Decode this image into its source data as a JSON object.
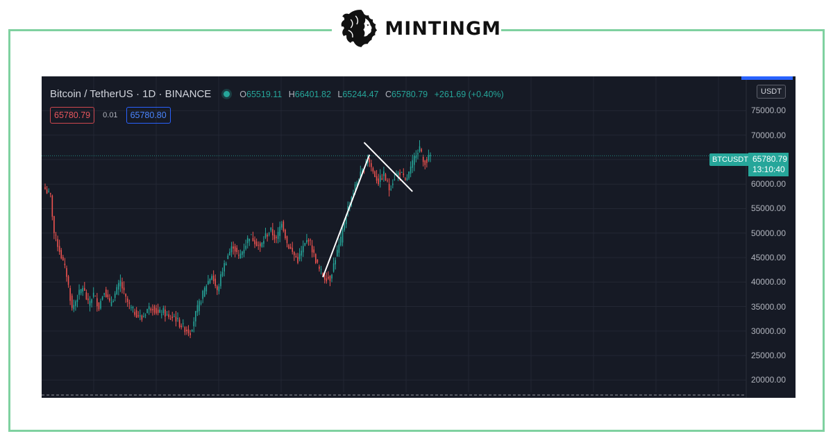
{
  "brand": {
    "name": "MINTINGM",
    "logo_icon": "lion-head-icon"
  },
  "header": {
    "symbol": "Bitcoin / TetherUS · 1D · BINANCE",
    "ohlc": {
      "o_label": "O",
      "o": "65519.11",
      "h_label": "H",
      "h": "66401.82",
      "l_label": "L",
      "l": "65244.47",
      "c_label": "C",
      "c": "65780.79",
      "change": "+261.69 (+0.40%)"
    },
    "sell_price": "65780.79",
    "spread": "0.01",
    "buy_price": "65780.80"
  },
  "currency_button": "USDT",
  "last_price": {
    "symbol": "BTCUSDT",
    "price": "65780.79",
    "countdown": "13:10:40"
  },
  "colors": {
    "up": "#26a69a",
    "down": "#ef5350",
    "background": "#161a25",
    "frame": "#7fd1a0"
  },
  "chart_data": {
    "type": "candlestick",
    "title": "Bitcoin / TetherUS · 1D · BINANCE",
    "y_ticks": [
      "75000.00",
      "70000.00",
      "65000.00",
      "60000.00",
      "55000.00",
      "50000.00",
      "45000.00",
      "40000.00",
      "35000.00",
      "30000.00",
      "25000.00",
      "20000.00"
    ],
    "ylim": [
      17500,
      82000
    ],
    "grid": true,
    "current_price_line": 65780.79,
    "close_path": [
      [
        0,
        59000
      ],
      [
        3,
        57500
      ],
      [
        5,
        50000
      ],
      [
        8,
        46500
      ],
      [
        10,
        44000
      ],
      [
        12,
        41500
      ],
      [
        15,
        34500
      ],
      [
        18,
        37000
      ],
      [
        21,
        39000
      ],
      [
        24,
        35500
      ],
      [
        27,
        37500
      ],
      [
        30,
        35000
      ],
      [
        33,
        38500
      ],
      [
        36,
        35500
      ],
      [
        39,
        37500
      ],
      [
        42,
        40000
      ],
      [
        45,
        36500
      ],
      [
        48,
        34500
      ],
      [
        51,
        33500
      ],
      [
        54,
        32500
      ],
      [
        57,
        34500
      ],
      [
        60,
        35000
      ],
      [
        63,
        33500
      ],
      [
        66,
        34000
      ],
      [
        69,
        32500
      ],
      [
        72,
        33000
      ],
      [
        75,
        31500
      ],
      [
        78,
        30500
      ],
      [
        81,
        29800
      ],
      [
        84,
        33500
      ],
      [
        87,
        36500
      ],
      [
        90,
        39500
      ],
      [
        93,
        41500
      ],
      [
        96,
        38000
      ],
      [
        99,
        42500
      ],
      [
        102,
        45500
      ],
      [
        105,
        47500
      ],
      [
        108,
        45000
      ],
      [
        111,
        47000
      ],
      [
        114,
        49500
      ],
      [
        117,
        48500
      ],
      [
        120,
        47000
      ],
      [
        123,
        49500
      ],
      [
        126,
        50500
      ],
      [
        129,
        48500
      ],
      [
        132,
        52500
      ],
      [
        135,
        48000
      ],
      [
        138,
        46000
      ],
      [
        141,
        44500
      ],
      [
        144,
        47000
      ],
      [
        147,
        49000
      ],
      [
        150,
        45500
      ],
      [
        153,
        42500
      ],
      [
        156,
        41000
      ],
      [
        159,
        40800
      ],
      [
        162,
        45000
      ],
      [
        165,
        48500
      ],
      [
        168,
        54000
      ],
      [
        171,
        57500
      ],
      [
        174,
        60500
      ],
      [
        177,
        62500
      ],
      [
        180,
        65500
      ],
      [
        183,
        62500
      ],
      [
        186,
        60500
      ],
      [
        189,
        62000
      ],
      [
        192,
        59000
      ],
      [
        195,
        61500
      ],
      [
        198,
        62500
      ],
      [
        201,
        60500
      ],
      [
        204,
        63000
      ],
      [
        207,
        66500
      ],
      [
        209,
        67500
      ],
      [
        211,
        64500
      ],
      [
        213,
        64800
      ],
      [
        215,
        65780
      ]
    ],
    "annotations": [
      {
        "type": "trendline",
        "from": [
          155,
          41000
        ],
        "to": [
          181,
          66000
        ]
      },
      {
        "type": "trendline",
        "from": [
          178,
          68500
        ],
        "to": [
          205,
          58500
        ]
      }
    ]
  }
}
